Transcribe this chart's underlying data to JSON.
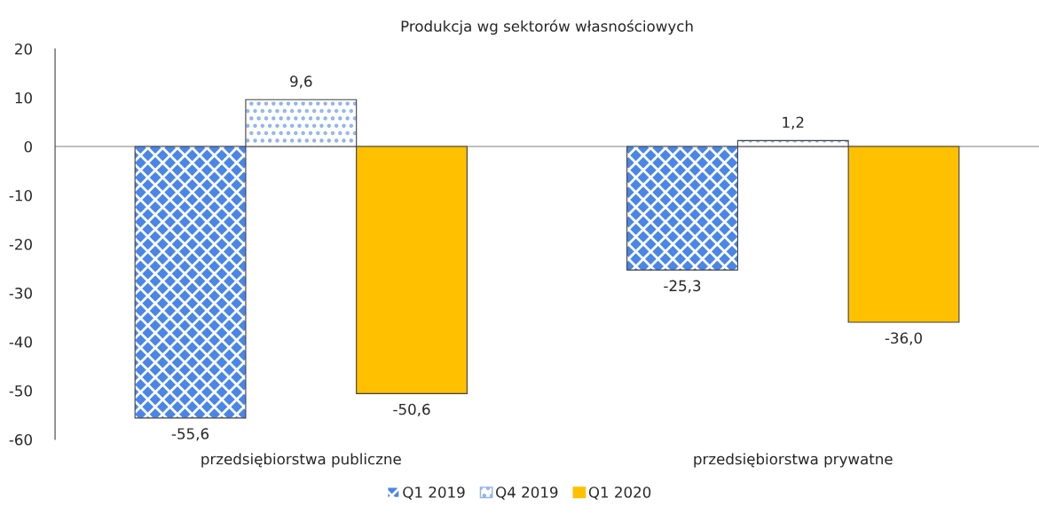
{
  "chart_data": {
    "type": "bar",
    "title": "Produkcja wg sektorów własnościowych",
    "categories": [
      "przedsiębiorstwa publiczne",
      "przedsiębiorstwa prywatne"
    ],
    "series": [
      {
        "name": "Q1 2019",
        "color": "#4a86e8",
        "values": [
          -55.6,
          -25.3
        ],
        "value_labels": [
          "-55,6",
          "-25,3"
        ]
      },
      {
        "name": "Q4 2019",
        "color": "#8fb4ea",
        "values": [
          9.6,
          1.2
        ],
        "value_labels": [
          "9,6",
          "1,2"
        ]
      },
      {
        "name": "Q1 2020",
        "color": "#ffc000",
        "values": [
          -50.6,
          -36.0
        ],
        "value_labels": [
          "-50,6",
          "-36,0"
        ]
      }
    ],
    "ylim": [
      -60,
      20
    ],
    "yticks": [
      -60,
      -50,
      -40,
      -30,
      -20,
      -10,
      0,
      10,
      20
    ],
    "ref_lines": [
      {
        "axis": "y",
        "value": 0,
        "color": "#808080"
      }
    ],
    "grid": false,
    "legend": "bottom"
  }
}
